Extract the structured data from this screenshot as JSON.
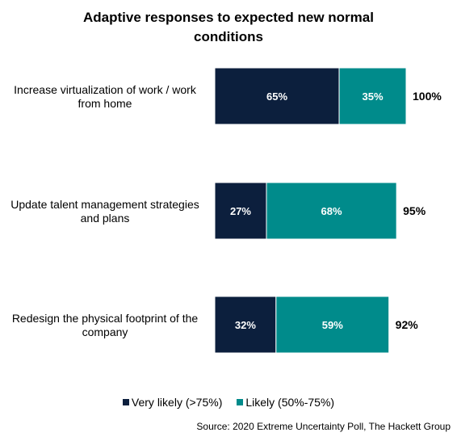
{
  "chart_data": {
    "type": "bar",
    "orientation": "horizontal",
    "stacked": true,
    "title": "Adaptive responses to expected new normal conditions",
    "categories": [
      "Increase virtualization of work / work from home",
      "Update talent management strategies and plans",
      "Redesign the physical footprint of the company"
    ],
    "series": [
      {
        "name": "Very likely (>75%)",
        "color": "#0c1f3d",
        "values": [
          65,
          27,
          32
        ],
        "labels": [
          "65%",
          "27%",
          "32%"
        ]
      },
      {
        "name": "Likely (50%-75%)",
        "color": "#008b8b",
        "values": [
          35,
          68,
          59
        ],
        "labels": [
          "35%",
          "68%",
          "59%"
        ]
      }
    ],
    "totals": [
      100,
      95,
      92
    ],
    "total_labels": [
      "100%",
      "95%",
      "92%"
    ],
    "xlim": [
      0,
      100
    ],
    "grid": false,
    "legend": "bottom"
  },
  "source": "Source: 2020 Extreme Uncertainty Poll, The Hackett Group"
}
